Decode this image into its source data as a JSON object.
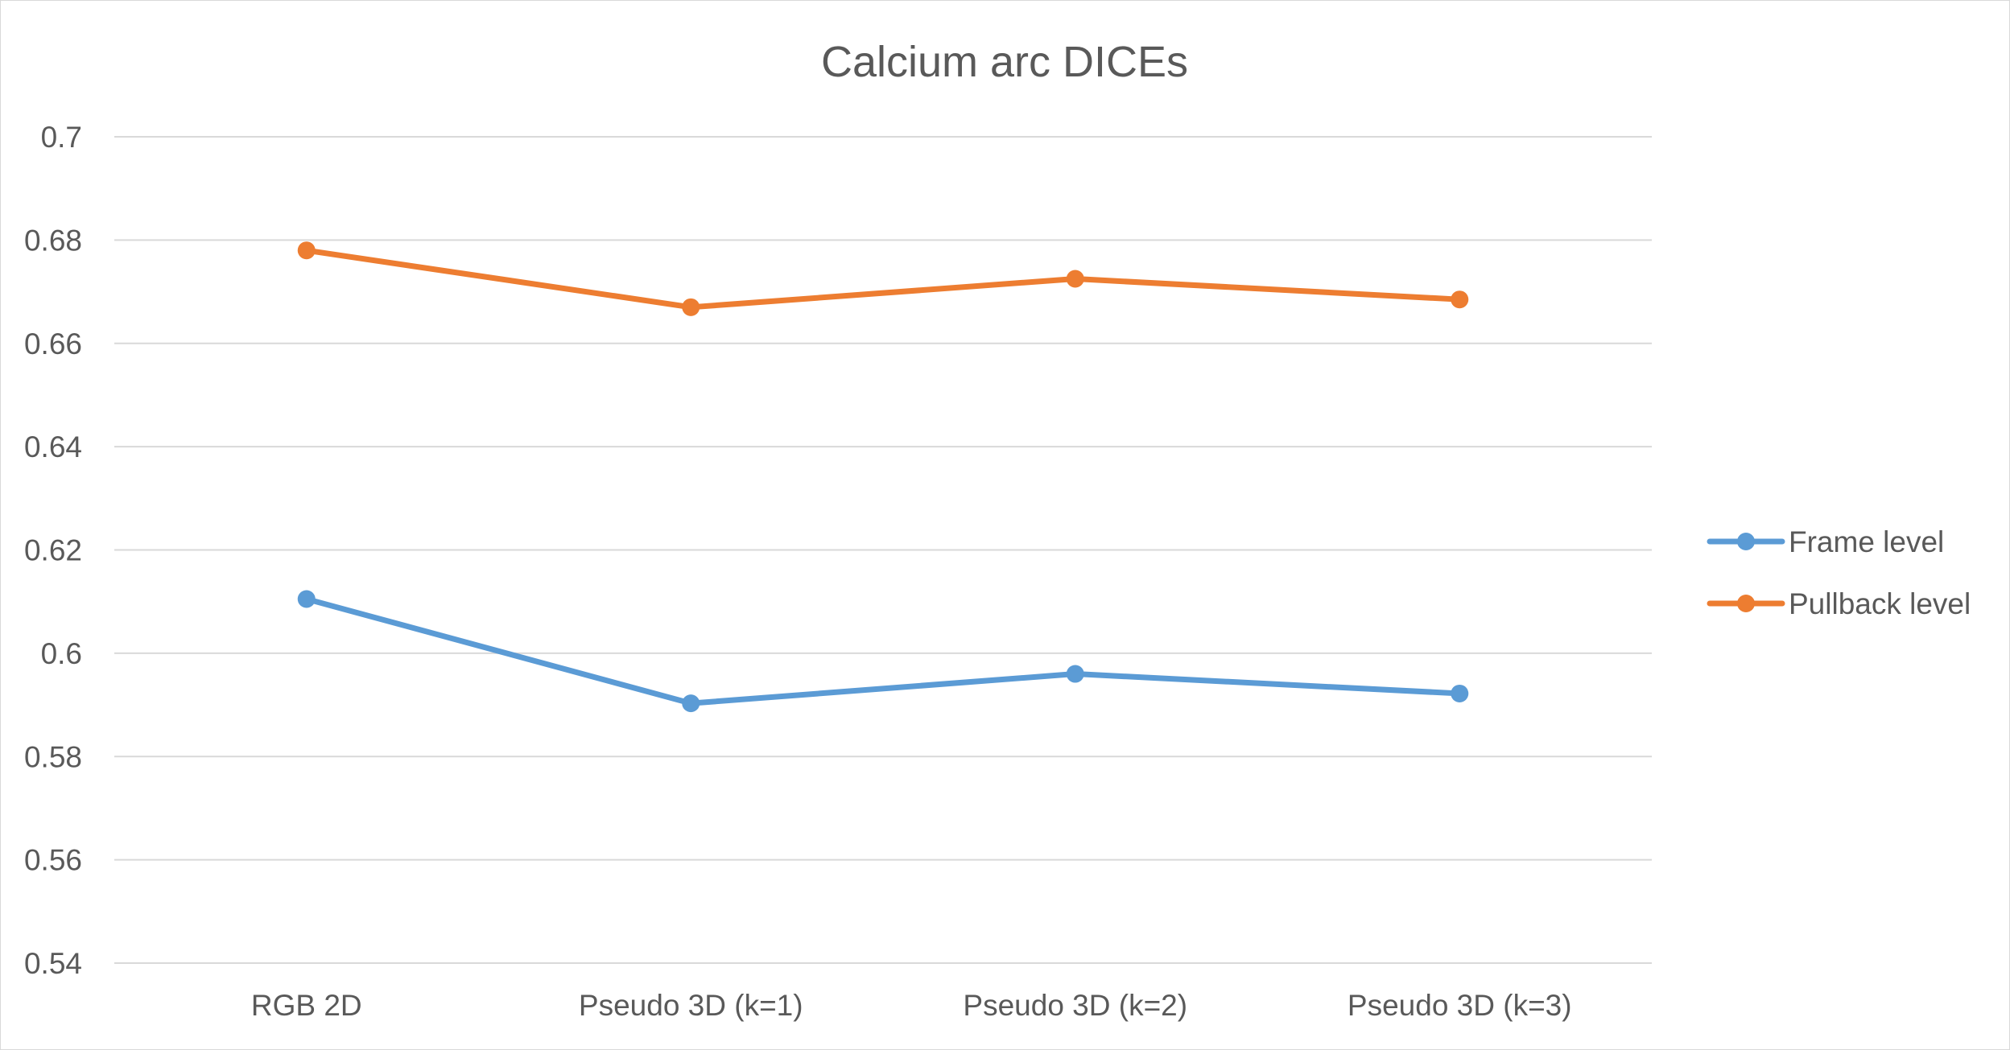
{
  "chart_data": {
    "type": "line",
    "title": "Calcium arc DICEs",
    "xlabel": "",
    "ylabel": "",
    "categories": [
      "RGB 2D",
      "Pseudo 3D (k=1)",
      "Pseudo 3D (k=2)",
      "Pseudo 3D (k=3)"
    ],
    "ylim": [
      0.54,
      0.7
    ],
    "yticks": [
      0.54,
      0.56,
      0.58,
      0.6,
      0.62,
      0.64,
      0.66,
      0.68,
      0.7
    ],
    "ytick_labels": [
      "0.54",
      "0.56",
      "0.58",
      "0.6",
      "0.62",
      "0.64",
      "0.66",
      "0.68",
      "0.7"
    ],
    "grid": "horizontal",
    "legend_position": "right",
    "series": [
      {
        "name": "Frame level",
        "color": "#5b9bd5",
        "values": [
          0.6105,
          0.5903,
          0.596,
          0.5922
        ]
      },
      {
        "name": "Pullback level",
        "color": "#ed7d31",
        "values": [
          0.678,
          0.667,
          0.6725,
          0.6685
        ]
      }
    ]
  }
}
